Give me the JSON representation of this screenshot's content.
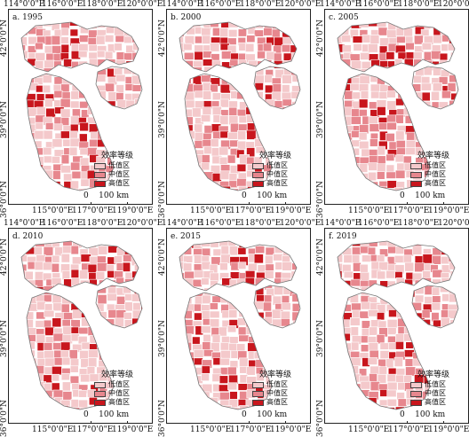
{
  "legend_title": "效率等级",
  "legend_items": [
    {
      "label": "低值区",
      "color": "#f4c9cb"
    },
    {
      "label": "中值区",
      "color": "#e7878e"
    },
    {
      "label": "高值区",
      "color": "#c8161d"
    }
  ],
  "scale_label": "0    100 km",
  "lon_top": [
    "114°0'0\"E",
    "116°0'0\"E",
    "118°0'0\"E",
    "120°0'0\"E"
  ],
  "lon_bottom": [
    "115°0'0\"E",
    "117°0'0\"E",
    "119°0'0\"E"
  ],
  "lat_labels": [
    "42°0'0\"N",
    "39°0'0\"N",
    "36°0'0\"N"
  ],
  "panels": [
    {
      "title": "a. 1995"
    },
    {
      "title": "b. 2000"
    },
    {
      "title": "c. 2005"
    },
    {
      "title": "d. 2010"
    },
    {
      "title": "e. 2015"
    },
    {
      "title": "f. 2019"
    }
  ]
}
